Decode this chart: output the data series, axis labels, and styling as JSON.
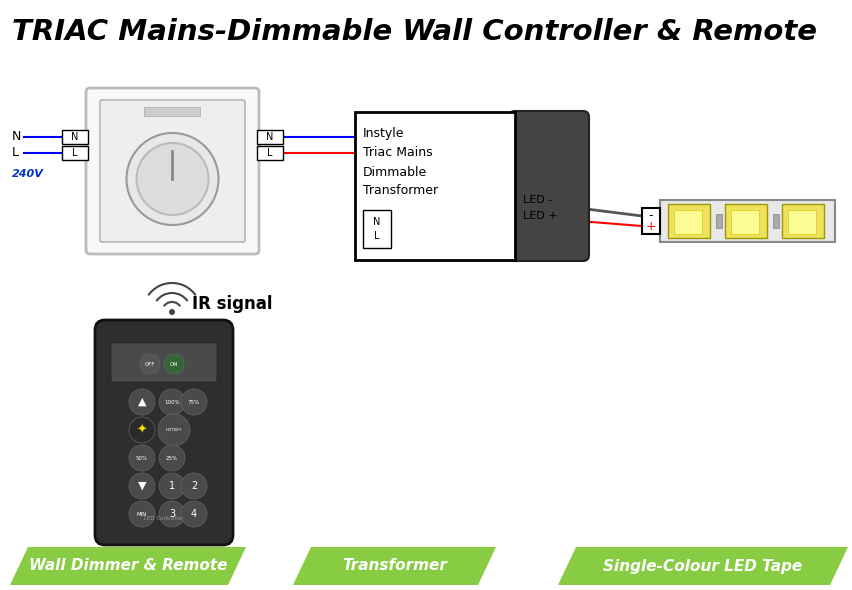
{
  "title": "TRIAC Mains-Dimmable Wall Controller & Remote",
  "title_color": "#000000",
  "bg_color": "#ffffff",
  "green_color": "#88cc44",
  "footer_labels": [
    "Wall Dimmer & Remote",
    "Transformer",
    "Single-Colour LED Tape"
  ],
  "transformer_text": [
    "Instyle",
    "Triac Mains",
    "Dimmable",
    "Transformer"
  ],
  "voltage_label": "240V",
  "ir_label": "IR signal"
}
